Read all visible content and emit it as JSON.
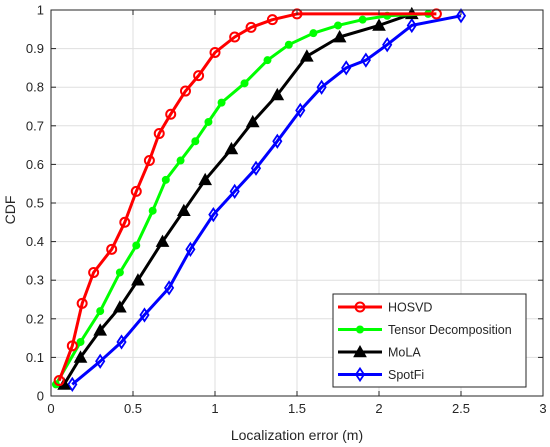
{
  "chart_data": {
    "type": "line",
    "title": "",
    "xlabel": "Localization error (m)",
    "ylabel": "CDF",
    "xlim": [
      0,
      3
    ],
    "ylim": [
      0,
      1
    ],
    "xticks": [
      0,
      0.5,
      1,
      1.5,
      2,
      2.5,
      3
    ],
    "yticks": [
      0,
      0.1,
      0.2,
      0.3,
      0.4,
      0.5,
      0.6,
      0.7,
      0.8,
      0.9,
      1
    ],
    "xtick_labels": [
      "0",
      "0.5",
      "1",
      "1.5",
      "2",
      "2.5",
      "3"
    ],
    "ytick_labels": [
      "0",
      "0.1",
      "0.2",
      "0.3",
      "0.4",
      "0.5",
      "0.6",
      "0.7",
      "0.8",
      "0.9",
      "1"
    ],
    "grid": true,
    "legend_position": "bottom-right",
    "series": [
      {
        "name": "HOSVD",
        "color": "#ff0000",
        "marker": "circle-open",
        "x": [
          0.05,
          0.13,
          0.19,
          0.26,
          0.37,
          0.45,
          0.52,
          0.6,
          0.66,
          0.73,
          0.82,
          0.9,
          1.0,
          1.12,
          1.22,
          1.35,
          1.5,
          2.35
        ],
        "y": [
          0.04,
          0.13,
          0.24,
          0.32,
          0.38,
          0.45,
          0.53,
          0.61,
          0.68,
          0.73,
          0.79,
          0.83,
          0.89,
          0.93,
          0.955,
          0.975,
          0.99,
          0.99
        ]
      },
      {
        "name": "Tensor Decomposition",
        "color": "#00ff00",
        "marker": "dot-filled",
        "x": [
          0.03,
          0.18,
          0.3,
          0.42,
          0.52,
          0.62,
          0.7,
          0.79,
          0.88,
          0.96,
          1.04,
          1.18,
          1.32,
          1.45,
          1.6,
          1.75,
          1.9,
          2.05,
          2.3
        ],
        "y": [
          0.03,
          0.14,
          0.22,
          0.32,
          0.39,
          0.48,
          0.56,
          0.61,
          0.66,
          0.71,
          0.76,
          0.81,
          0.87,
          0.91,
          0.94,
          0.96,
          0.975,
          0.985,
          0.99
        ]
      },
      {
        "name": "MoLA",
        "color": "#000000",
        "marker": "triangle-filled",
        "x": [
          0.08,
          0.18,
          0.3,
          0.42,
          0.53,
          0.68,
          0.81,
          0.94,
          1.1,
          1.23,
          1.38,
          1.56,
          1.76,
          2.0,
          2.2
        ],
        "y": [
          0.03,
          0.1,
          0.17,
          0.23,
          0.3,
          0.4,
          0.48,
          0.56,
          0.64,
          0.71,
          0.78,
          0.88,
          0.93,
          0.96,
          0.99
        ]
      },
      {
        "name": "SpotFi",
        "color": "#0000ff",
        "marker": "diamond-open",
        "x": [
          0.13,
          0.3,
          0.43,
          0.57,
          0.72,
          0.85,
          0.99,
          1.12,
          1.25,
          1.38,
          1.52,
          1.65,
          1.8,
          1.92,
          2.05,
          2.2,
          2.5
        ],
        "y": [
          0.03,
          0.09,
          0.14,
          0.21,
          0.28,
          0.38,
          0.47,
          0.53,
          0.59,
          0.66,
          0.74,
          0.8,
          0.85,
          0.87,
          0.91,
          0.96,
          0.985
        ]
      }
    ]
  }
}
